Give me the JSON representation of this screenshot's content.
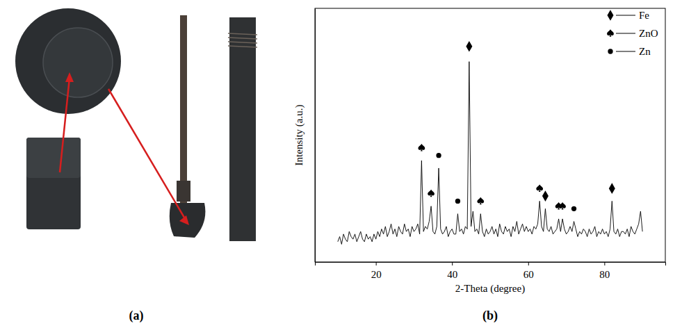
{
  "figure": {
    "labels": [
      "(a)",
      "(b)"
    ]
  },
  "chart_data": {
    "type": "line",
    "x_label": "2-Theta (degree)",
    "y_label": "Intensity (a.u.)",
    "xlim": [
      4,
      96
    ],
    "xticks": [
      20,
      40,
      60,
      80
    ],
    "ylim": [
      0,
      100
    ],
    "tick_labels": "x",
    "grid": false,
    "legend": "upper right",
    "series": [
      {
        "type": "line",
        "color": "#000000",
        "x": [
          10,
          10.5,
          11,
          11.5,
          12,
          12.5,
          13,
          13.5,
          14,
          14.5,
          15,
          15.5,
          16,
          16.5,
          17,
          17.5,
          18,
          18.5,
          19,
          19.5,
          20,
          20.5,
          21,
          21.5,
          22,
          22.5,
          23,
          23.5,
          24,
          24.5,
          25,
          25.5,
          26,
          26.5,
          27,
          27.5,
          28,
          28.5,
          29,
          29.5,
          30,
          30.5,
          31,
          31.5,
          32,
          32.5,
          33,
          33.5,
          34,
          34.5,
          35,
          35.5,
          36,
          36.5,
          37,
          37.5,
          38,
          38.5,
          39,
          39.5,
          40,
          40.5,
          41,
          41.5,
          42,
          42.5,
          43,
          43.5,
          44,
          44.5,
          45,
          45.5,
          46,
          46.5,
          47,
          47.5,
          48,
          48.5,
          49,
          49.5,
          50,
          50.5,
          51,
          51.5,
          52,
          52.5,
          53,
          53.5,
          54,
          54.5,
          55,
          55.5,
          56,
          56.5,
          57,
          57.5,
          58,
          58.5,
          59,
          59.5,
          60,
          60.5,
          61,
          61.5,
          62,
          62.5,
          63,
          63.5,
          64,
          64.5,
          65,
          65.5,
          66,
          66.5,
          67,
          67.5,
          68,
          68.5,
          69,
          69.5,
          70,
          70.5,
          71,
          71.5,
          72,
          72.5,
          73,
          73.5,
          74,
          74.5,
          75,
          75.5,
          76,
          76.5,
          77,
          77.5,
          78,
          78.5,
          79,
          79.5,
          80,
          80.5,
          81,
          81.5,
          82,
          82.5,
          83,
          83.5,
          84,
          84.5,
          85,
          85.5,
          86,
          86.5,
          87,
          87.5,
          88,
          88.5,
          89,
          89.5,
          90
        ],
        "values": [
          8,
          10,
          7,
          11,
          9,
          8,
          12,
          10,
          9,
          11,
          8,
          10,
          12,
          9,
          8,
          11,
          9,
          10,
          8,
          11,
          9,
          12,
          10,
          13,
          11,
          14,
          10,
          12,
          15,
          11,
          13,
          10,
          14,
          12,
          11,
          15,
          12,
          13,
          10,
          14,
          12,
          13,
          15,
          11,
          40,
          12,
          14,
          13,
          16,
          22,
          12,
          11,
          14,
          37,
          13,
          11,
          12,
          14,
          10,
          12,
          13,
          11,
          11,
          19,
          12,
          13,
          11,
          14,
          13,
          79,
          14,
          20,
          12,
          13,
          11,
          19,
          12,
          10,
          13,
          11,
          12,
          14,
          11,
          13,
          10,
          15,
          12,
          11,
          14,
          12,
          13,
          10,
          14,
          12,
          16,
          11,
          13,
          15,
          12,
          14,
          12,
          13,
          11,
          14,
          13,
          15,
          24,
          14,
          12,
          21,
          13,
          12,
          14,
          11,
          12,
          13,
          17,
          12,
          17,
          13,
          11,
          12,
          14,
          12,
          16,
          13,
          10,
          12,
          11,
          13,
          12,
          10,
          13,
          11,
          12,
          14,
          10,
          12,
          11,
          13,
          11,
          12,
          10,
          13,
          24,
          12,
          11,
          13,
          10,
          12,
          12,
          11,
          13,
          10,
          14,
          12,
          11,
          13,
          15,
          20,
          12
        ]
      },
      {
        "name": "Fe",
        "type": "scatter",
        "marker": "diamond",
        "color": "#000000",
        "x": [
          44.5,
          64.5,
          82
        ],
        "values": [
          85,
          26,
          29
        ]
      },
      {
        "name": "ZnO",
        "type": "scatter",
        "marker": "spade",
        "color": "#000000",
        "x": [
          32,
          34.5,
          47.5,
          63,
          68,
          69
        ],
        "values": [
          45,
          27,
          24,
          29,
          22,
          22
        ]
      },
      {
        "name": "Zn",
        "type": "scatter",
        "marker": "circle",
        "color": "#000000",
        "x": [
          36.5,
          41.5,
          72
        ],
        "values": [
          42,
          24,
          21
        ]
      }
    ]
  }
}
